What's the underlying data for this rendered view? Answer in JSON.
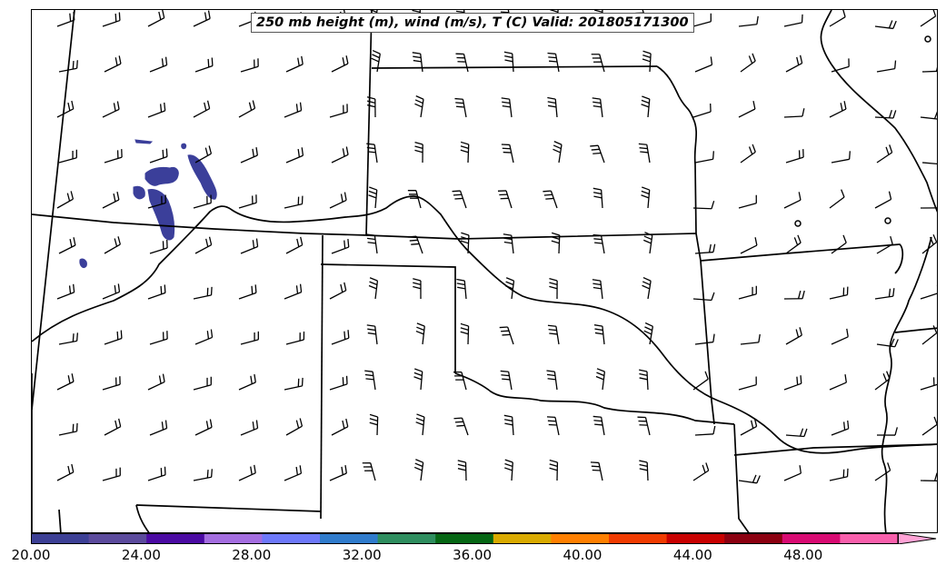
{
  "map": {
    "title": "250 mb height (m), wind (m/s), T (C) Valid: 201805171300",
    "barb_color": "#000000",
    "border_color": "#000000",
    "shading_color": "#3b3f9a"
  },
  "colorbar": {
    "colors": [
      "#3c3f95",
      "#5b4a9c",
      "#4b0aa3",
      "#a46de0",
      "#6d78fa",
      "#2f7bcc",
      "#2e8d5e",
      "#056613",
      "#d9aa00",
      "#ff7f00",
      "#f03a00",
      "#c80000",
      "#8b0010",
      "#d80a72",
      "#f85fac",
      "#ffa3d6"
    ],
    "min": 20,
    "max": 51.5,
    "tick_labels": [
      "20.00",
      "24.00",
      "28.00",
      "32.00",
      "36.00",
      "40.00",
      "44.00",
      "48.00"
    ]
  }
}
